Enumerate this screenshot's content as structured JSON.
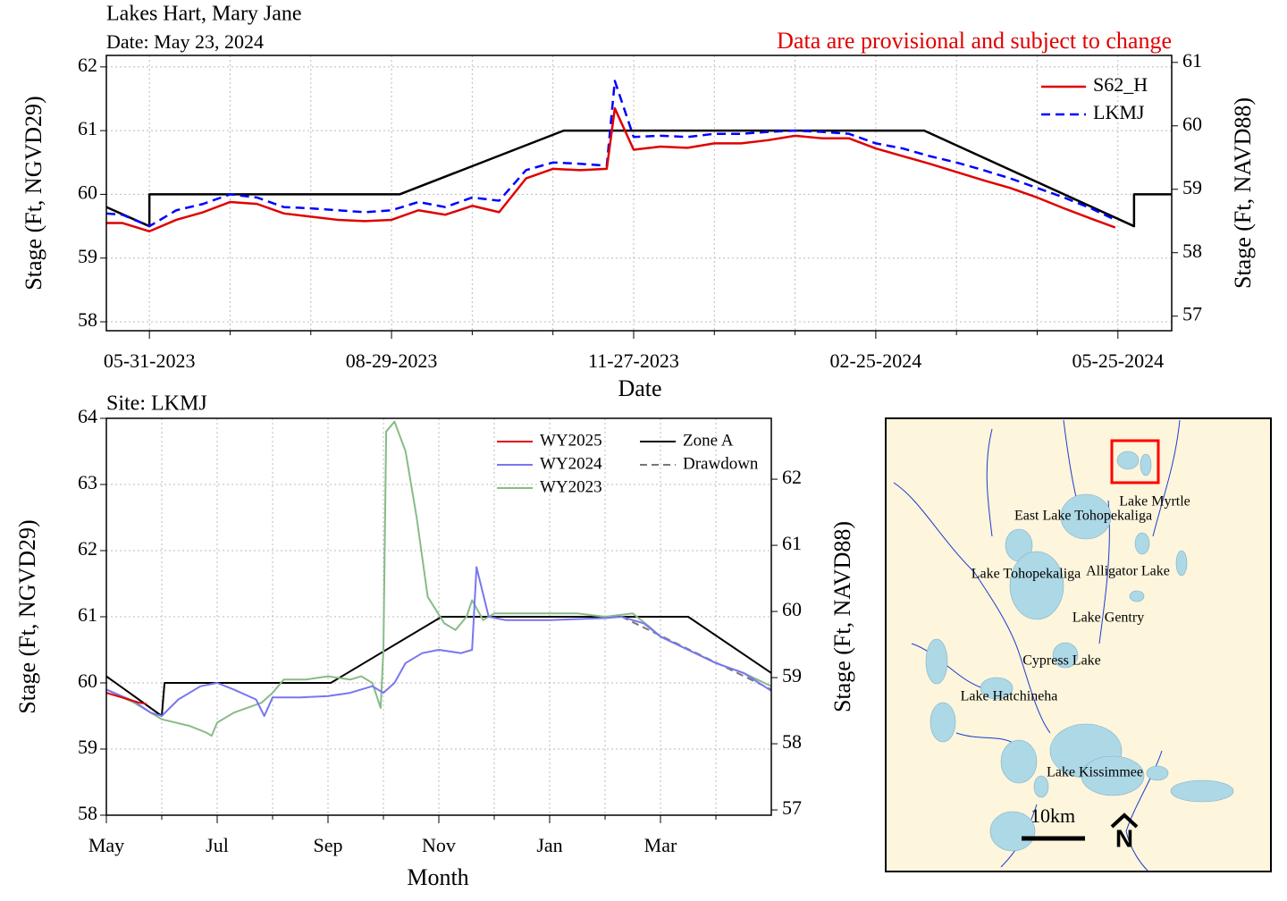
{
  "chart_data": [
    {
      "type": "line",
      "title": "Lakes Hart, Mary Jane",
      "subtitle": "Date: May 23, 2024",
      "annotation": "Data are provisional and subject to change",
      "xlabel": "Date",
      "ylabel": "Stage (Ft, NGVD29)",
      "y2label": "Stage (Ft, NAVD88)",
      "xlim": [
        "2023-05-15",
        "2024-06-14"
      ],
      "xticks": [
        {
          "value": "2023-05-31",
          "label": "05-31-2023"
        },
        {
          "value": "2023-08-29",
          "label": "08-29-2023"
        },
        {
          "value": "2023-11-27",
          "label": "11-27-2023"
        },
        {
          "value": "2024-02-25",
          "label": "02-25-2024"
        },
        {
          "value": "2024-05-25",
          "label": "05-25-2024"
        }
      ],
      "xminorticks": [
        "2023-06-30",
        "2023-07-30",
        "2023-09-28",
        "2023-10-28",
        "2023-12-27",
        "2024-01-26",
        "2024-03-26",
        "2024-04-25"
      ],
      "ylim": [
        57.86,
        62.18
      ],
      "yticks": [
        58,
        59,
        60,
        61,
        62
      ],
      "y2lim": [
        56.77,
        61.11
      ],
      "y2ticks": [
        57,
        58,
        59,
        60,
        61
      ],
      "grid": true,
      "legend": "upper right",
      "series": [
        {
          "name": "S62_H",
          "color": "#e00000",
          "style": "solid",
          "x": [
            "2023-05-15",
            "2023-05-21",
            "2023-05-31",
            "2023-06-10",
            "2023-06-20",
            "2023-06-30",
            "2023-07-10",
            "2023-07-20",
            "2023-07-30",
            "2023-08-09",
            "2023-08-19",
            "2023-08-29",
            "2023-09-08",
            "2023-09-18",
            "2023-09-28",
            "2023-10-08",
            "2023-10-18",
            "2023-10-28",
            "2023-11-07",
            "2023-11-17",
            "2023-11-20",
            "2023-11-27",
            "2023-12-07",
            "2023-12-17",
            "2023-12-27",
            "2024-01-06",
            "2024-01-16",
            "2024-01-26",
            "2024-02-05",
            "2024-02-15",
            "2024-02-25",
            "2024-03-06",
            "2024-03-16",
            "2024-03-26",
            "2024-04-05",
            "2024-04-15",
            "2024-04-25",
            "2024-05-05",
            "2024-05-15",
            "2024-05-24"
          ],
          "values": [
            59.55,
            59.55,
            59.42,
            59.6,
            59.72,
            59.88,
            59.85,
            59.7,
            59.65,
            59.6,
            59.58,
            59.6,
            59.75,
            59.68,
            59.82,
            59.72,
            60.25,
            60.4,
            60.38,
            60.4,
            61.35,
            60.7,
            60.75,
            60.73,
            60.8,
            60.8,
            60.85,
            60.92,
            60.88,
            60.88,
            60.72,
            60.6,
            60.48,
            60.35,
            60.22,
            60.1,
            59.95,
            59.78,
            59.62,
            59.48
          ]
        },
        {
          "name": "LKMJ",
          "color": "#0000ff",
          "style": "dashed",
          "x": [
            "2023-05-15",
            "2023-05-21",
            "2023-05-31",
            "2023-06-10",
            "2023-06-20",
            "2023-06-30",
            "2023-07-10",
            "2023-07-20",
            "2023-07-30",
            "2023-08-09",
            "2023-08-19",
            "2023-08-29",
            "2023-09-08",
            "2023-09-18",
            "2023-09-28",
            "2023-10-08",
            "2023-10-18",
            "2023-10-28",
            "2023-11-07",
            "2023-11-17",
            "2023-11-20",
            "2023-11-27",
            "2023-12-07",
            "2023-12-17",
            "2023-12-27",
            "2024-01-06",
            "2024-01-16",
            "2024-01-26",
            "2024-02-05",
            "2024-02-15",
            "2024-02-25",
            "2024-03-06",
            "2024-03-16",
            "2024-03-26",
            "2024-04-05",
            "2024-04-15",
            "2024-04-25",
            "2024-05-05",
            "2024-05-15",
            "2024-05-24"
          ],
          "values": [
            59.7,
            59.68,
            59.5,
            59.75,
            59.85,
            60.0,
            59.95,
            59.8,
            59.78,
            59.75,
            59.72,
            59.75,
            59.88,
            59.8,
            59.95,
            59.9,
            60.38,
            60.5,
            60.48,
            60.45,
            61.78,
            60.9,
            60.92,
            60.9,
            60.95,
            60.95,
            60.98,
            61.0,
            60.98,
            60.95,
            60.8,
            60.72,
            60.6,
            60.5,
            60.38,
            60.25,
            60.1,
            59.95,
            59.78,
            59.6
          ]
        },
        {
          "color": "#000000",
          "style": "solid",
          "x": [
            "2023-05-15",
            "2023-05-31",
            "2023-05-31",
            "2023-09-01",
            "2023-11-01",
            "2024-03-14",
            "2024-05-31",
            "2024-05-31",
            "2024-06-14"
          ],
          "values": [
            59.8,
            59.5,
            60.0,
            60.0,
            61.0,
            61.0,
            59.5,
            60.0,
            60.0
          ]
        }
      ]
    },
    {
      "type": "line",
      "title": "Site: LKMJ",
      "xlabel": "Month",
      "ylabel": "Stage (Ft, NGVD29)",
      "y2label": "Stage (Ft, NAVD88)",
      "xlim": [
        0,
        12
      ],
      "xticks": [
        {
          "value": 0,
          "label": "May"
        },
        {
          "value": 2,
          "label": "Jul"
        },
        {
          "value": 4,
          "label": "Sep"
        },
        {
          "value": 6,
          "label": "Nov"
        },
        {
          "value": 8,
          "label": "Jan"
        },
        {
          "value": 10,
          "label": "Mar"
        }
      ],
      "xminorticks": [
        1,
        3,
        5,
        7,
        9,
        11
      ],
      "ylim": [
        58,
        64
      ],
      "yticks": [
        58,
        59,
        60,
        61,
        62,
        63,
        64
      ],
      "y2lim": [
        56.92,
        62.92
      ],
      "y2ticks": [
        57,
        58,
        59,
        60,
        61,
        62
      ],
      "grid": true,
      "legend": "upper right",
      "series": [
        {
          "name": "WY2025",
          "color": "#e00000",
          "style": "solid",
          "x": [
            0,
            0.2,
            0.4,
            0.6,
            0.73
          ],
          "values": [
            59.85,
            59.8,
            59.75,
            59.7,
            59.68
          ]
        },
        {
          "name": "WY2024",
          "color": "#7777ee",
          "style": "solid",
          "x": [
            0,
            0.5,
            0.8,
            1.0,
            1.3,
            1.7,
            2.0,
            2.3,
            2.7,
            2.85,
            3.0,
            3.5,
            4.0,
            4.4,
            4.8,
            5.0,
            5.2,
            5.4,
            5.7,
            6.0,
            6.4,
            6.6,
            6.68,
            6.9,
            7.2,
            8.0,
            9.0,
            9.3,
            9.7,
            10.0,
            10.5,
            11.0,
            11.5,
            12.0
          ],
          "values": [
            59.9,
            59.72,
            59.55,
            59.5,
            59.75,
            59.95,
            60.0,
            59.9,
            59.75,
            59.5,
            59.78,
            59.78,
            59.8,
            59.85,
            59.95,
            59.85,
            60.0,
            60.3,
            60.45,
            60.5,
            60.45,
            60.5,
            61.75,
            61.0,
            60.95,
            60.95,
            60.98,
            61.0,
            60.9,
            60.7,
            60.5,
            60.3,
            60.15,
            59.88
          ]
        },
        {
          "name": "WY2023",
          "color": "#88bb88",
          "style": "solid",
          "x": [
            0,
            0.5,
            1.0,
            1.5,
            1.8,
            1.9,
            2.0,
            2.3,
            2.8,
            3.0,
            3.2,
            3.6,
            4.0,
            4.4,
            4.6,
            4.8,
            4.95,
            5.0,
            5.05,
            5.2,
            5.4,
            5.6,
            5.8,
            6.1,
            6.3,
            6.5,
            6.6,
            6.8,
            7.0,
            7.5,
            8.0,
            8.5,
            9.0,
            9.5,
            9.8,
            10.0,
            10.5,
            11.0,
            11.5,
            12.0
          ],
          "values": [
            59.9,
            59.7,
            59.45,
            59.35,
            59.25,
            59.2,
            59.4,
            59.55,
            59.7,
            59.85,
            60.05,
            60.05,
            60.1,
            60.05,
            60.1,
            60.0,
            59.62,
            60.5,
            63.8,
            63.95,
            63.5,
            62.5,
            61.3,
            60.9,
            60.8,
            61.0,
            61.25,
            60.95,
            61.05,
            61.05,
            61.05,
            61.05,
            61.0,
            61.05,
            60.85,
            60.7,
            60.5,
            60.3,
            60.15,
            59.95
          ]
        },
        {
          "name": "Zone A",
          "color": "#000000",
          "style": "solid",
          "x": [
            0,
            1.0,
            1.05,
            4.05,
            6.05,
            10.5,
            12
          ],
          "values": [
            60.1,
            59.5,
            60.0,
            60.0,
            61.0,
            61.0,
            60.15
          ]
        },
        {
          "name": "Drawdown",
          "color": "#777777",
          "style": "dashed",
          "x": [
            9.3,
            12
          ],
          "values": [
            61.0,
            59.9
          ]
        }
      ]
    }
  ],
  "map": {
    "labels": [
      "Lake Myrtle",
      "East Lake Tohopekaliga",
      "Alligator Lake",
      "Lake Tohopekaliga",
      "Lake Gentry",
      "Cypress Lake",
      "Lake Hatchineha",
      "Lake Kissimmee"
    ],
    "scale": "10km",
    "north": "N"
  }
}
